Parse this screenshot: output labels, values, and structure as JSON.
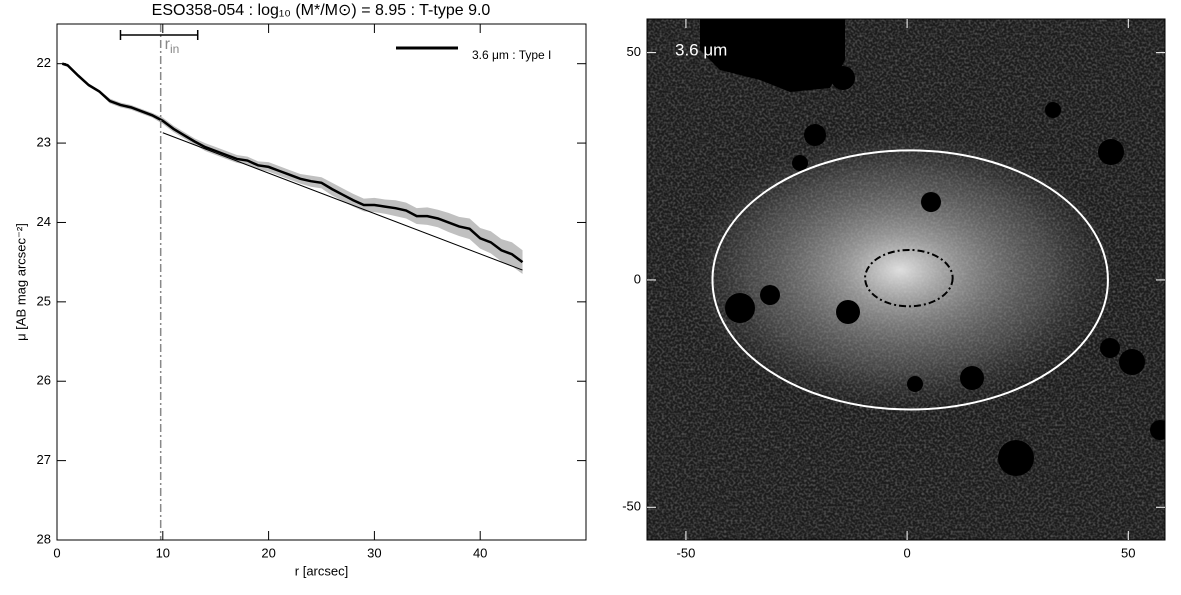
{
  "chart_data": [
    {
      "type": "line",
      "title": "ESO358-054 : log₁₀ (M*/M⊙) = 8.95 : T-type 9.0",
      "xlabel": "r [arcsec]",
      "ylabel": "μ [AB mag arcsec⁻²]",
      "x": [
        0.5,
        1,
        2,
        3,
        4,
        5,
        6,
        7,
        8,
        9,
        10,
        11,
        12,
        13,
        14,
        15,
        16,
        17,
        18,
        19,
        20,
        21,
        22,
        23,
        24,
        25,
        26,
        27,
        28,
        29,
        30,
        31,
        32,
        33,
        34,
        35,
        36,
        37,
        38,
        39,
        40,
        41,
        42,
        43,
        44
      ],
      "series": [
        {
          "name": "3.6 μm : Type I",
          "color": "#000000",
          "band_color": "#c0c0c0",
          "values": [
            22.0,
            22.02,
            22.15,
            22.27,
            22.35,
            22.47,
            22.52,
            22.55,
            22.6,
            22.65,
            22.72,
            22.82,
            22.9,
            22.98,
            23.05,
            23.1,
            23.15,
            23.2,
            23.22,
            23.28,
            23.3,
            23.35,
            23.4,
            23.45,
            23.48,
            23.5,
            23.58,
            23.65,
            23.72,
            23.78,
            23.78,
            23.8,
            23.82,
            23.85,
            23.92,
            23.92,
            23.95,
            24.0,
            24.05,
            24.08,
            24.2,
            24.25,
            24.35,
            24.4,
            24.5
          ],
          "errors": [
            0.02,
            0.02,
            0.02,
            0.02,
            0.02,
            0.03,
            0.03,
            0.03,
            0.03,
            0.03,
            0.04,
            0.04,
            0.04,
            0.04,
            0.05,
            0.05,
            0.05,
            0.05,
            0.05,
            0.05,
            0.06,
            0.06,
            0.06,
            0.06,
            0.07,
            0.07,
            0.08,
            0.08,
            0.08,
            0.08,
            0.09,
            0.09,
            0.1,
            0.1,
            0.1,
            0.11,
            0.11,
            0.12,
            0.12,
            0.13,
            0.13,
            0.14,
            0.14,
            0.15,
            0.15
          ]
        }
      ],
      "fit": {
        "x": [
          10,
          44
        ],
        "values": [
          22.87,
          24.6
        ]
      },
      "r_in": {
        "value": 9.8,
        "range": [
          6,
          13.3
        ],
        "label": "r",
        "subscript": "in"
      },
      "xlim": [
        0,
        50
      ],
      "xticks": [
        0,
        10,
        20,
        30,
        40
      ],
      "ylim": [
        21.5,
        28
      ],
      "yticks": [
        22,
        23,
        24,
        25,
        26,
        27,
        28
      ],
      "y_inverted": true,
      "legend": "upper right"
    },
    {
      "type": "image",
      "label": "3.6 μm",
      "xlim": [
        -58.8,
        58.3
      ],
      "xticks": [
        -50,
        0,
        50
      ],
      "ylim": [
        -57.2,
        57.4
      ],
      "yticks": [
        -50,
        0,
        50
      ],
      "ellipses": [
        {
          "cx": 0.7,
          "cy": 0,
          "rx": 44.7,
          "ry": 28.5,
          "color": "#ffffff",
          "style": "solid"
        },
        {
          "cx": 0.4,
          "cy": 0.4,
          "rx": 9.9,
          "ry": 6.2,
          "color": "#000000",
          "style": "dashdot"
        }
      ]
    }
  ]
}
